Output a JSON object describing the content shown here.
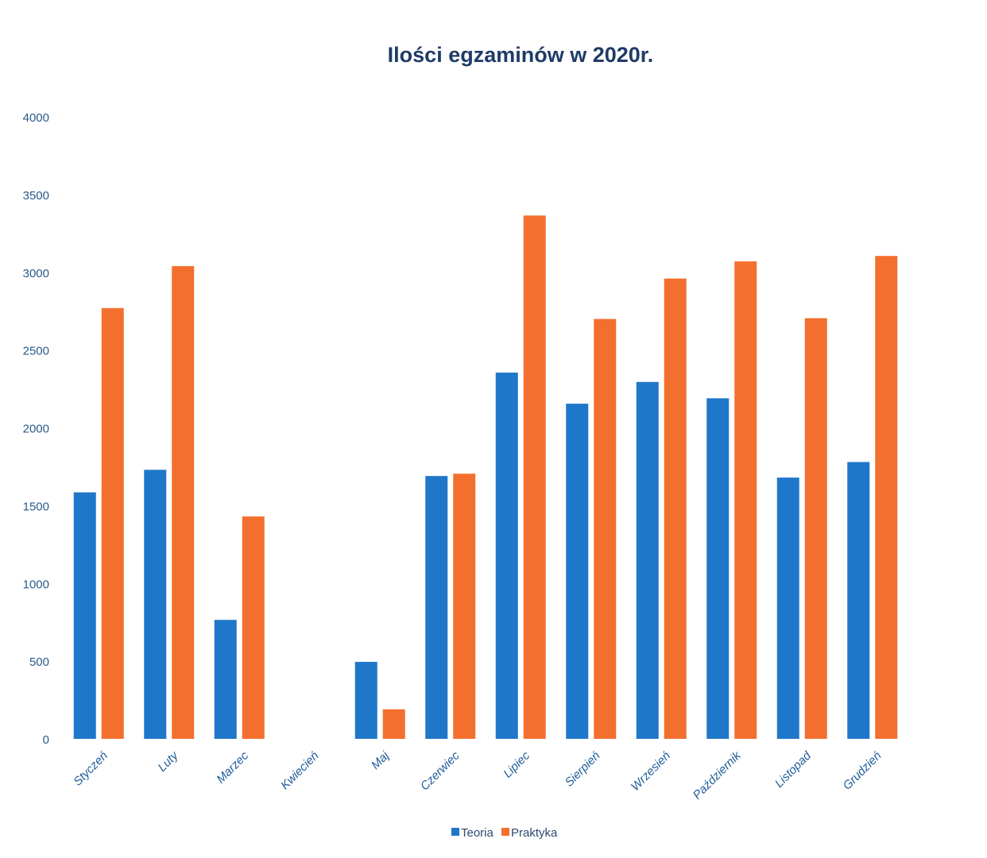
{
  "chart_data": {
    "type": "bar",
    "title": "Ilości egzaminów w 2020r.",
    "xlabel": "",
    "ylabel": "",
    "ylim": [
      0,
      4000
    ],
    "yticks": [
      0,
      500,
      1000,
      1500,
      2000,
      2500,
      3000,
      3500,
      4000
    ],
    "grid": false,
    "legend_position": "bottom",
    "categories": [
      "Styczeń",
      "Luty",
      "Marzec",
      "Kwiecień",
      "Maj",
      "Czerwiec",
      "Lipiec",
      "Sierpień",
      "Wrzesień",
      "Październik",
      "Listopad",
      "Grudzień"
    ],
    "series": [
      {
        "name": "Teoria",
        "color": "#1f77c9",
        "values": [
          1585,
          1730,
          765,
          0,
          495,
          1690,
          2355,
          2155,
          2295,
          2190,
          1680,
          1780
        ]
      },
      {
        "name": "Praktyka",
        "color": "#f36f2e",
        "values": [
          2770,
          3040,
          1430,
          0,
          190,
          1705,
          3365,
          2700,
          2960,
          3070,
          2705,
          3105
        ]
      }
    ]
  }
}
